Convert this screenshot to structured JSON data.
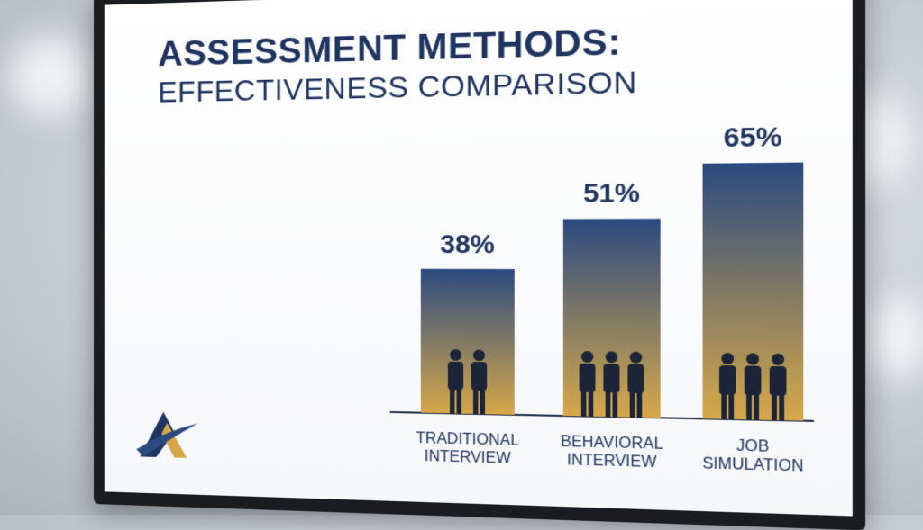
{
  "chart_data": {
    "type": "bar",
    "title": "ASSESSMENT METHODS:",
    "subtitle": "EFFECTIVENESS COMPARISON",
    "categories": [
      "TRADITIONAL INTERVIEW",
      "BEHAVIORAL INTERVIEW",
      "JOB SIMULATION"
    ],
    "values": [
      38,
      51,
      65
    ],
    "value_labels": [
      "38%",
      "51%",
      "65%"
    ],
    "color": [
      "#2b4a80",
      "#d6a84a"
    ]
  }
}
